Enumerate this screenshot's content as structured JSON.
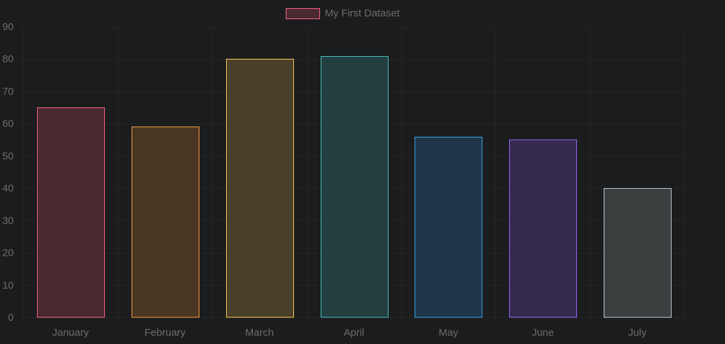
{
  "chart_data": {
    "type": "bar",
    "categories": [
      "January",
      "February",
      "March",
      "April",
      "May",
      "June",
      "July"
    ],
    "series": [
      {
        "name": "My First Dataset",
        "values": [
          65,
          59,
          80,
          81,
          56,
          55,
          40
        ]
      }
    ],
    "xlabel": "",
    "ylabel": "",
    "ylim": [
      0,
      90
    ],
    "yticks": [
      0,
      10,
      20,
      30,
      40,
      50,
      60,
      70,
      80,
      90
    ],
    "grid": true,
    "legend_position": "top-center",
    "bar_border_colors": [
      "#ff6384",
      "#ff9f40",
      "#ffcd56",
      "#4bc0c0",
      "#36a2eb",
      "#9966ff",
      "#c9cbcf"
    ],
    "bar_fill_colors": [
      "#4a2a31",
      "#4a3622",
      "#4a4029",
      "#233e3f",
      "#1f3649",
      "#362b4e",
      "#3b3f40"
    ],
    "legend_fill_color": "#4a2a31",
    "legend_border_color": "#ff6384",
    "background_color": "#1b1c1e",
    "grid_color": "#242527",
    "tick_label_color": "#6c6c6c"
  }
}
